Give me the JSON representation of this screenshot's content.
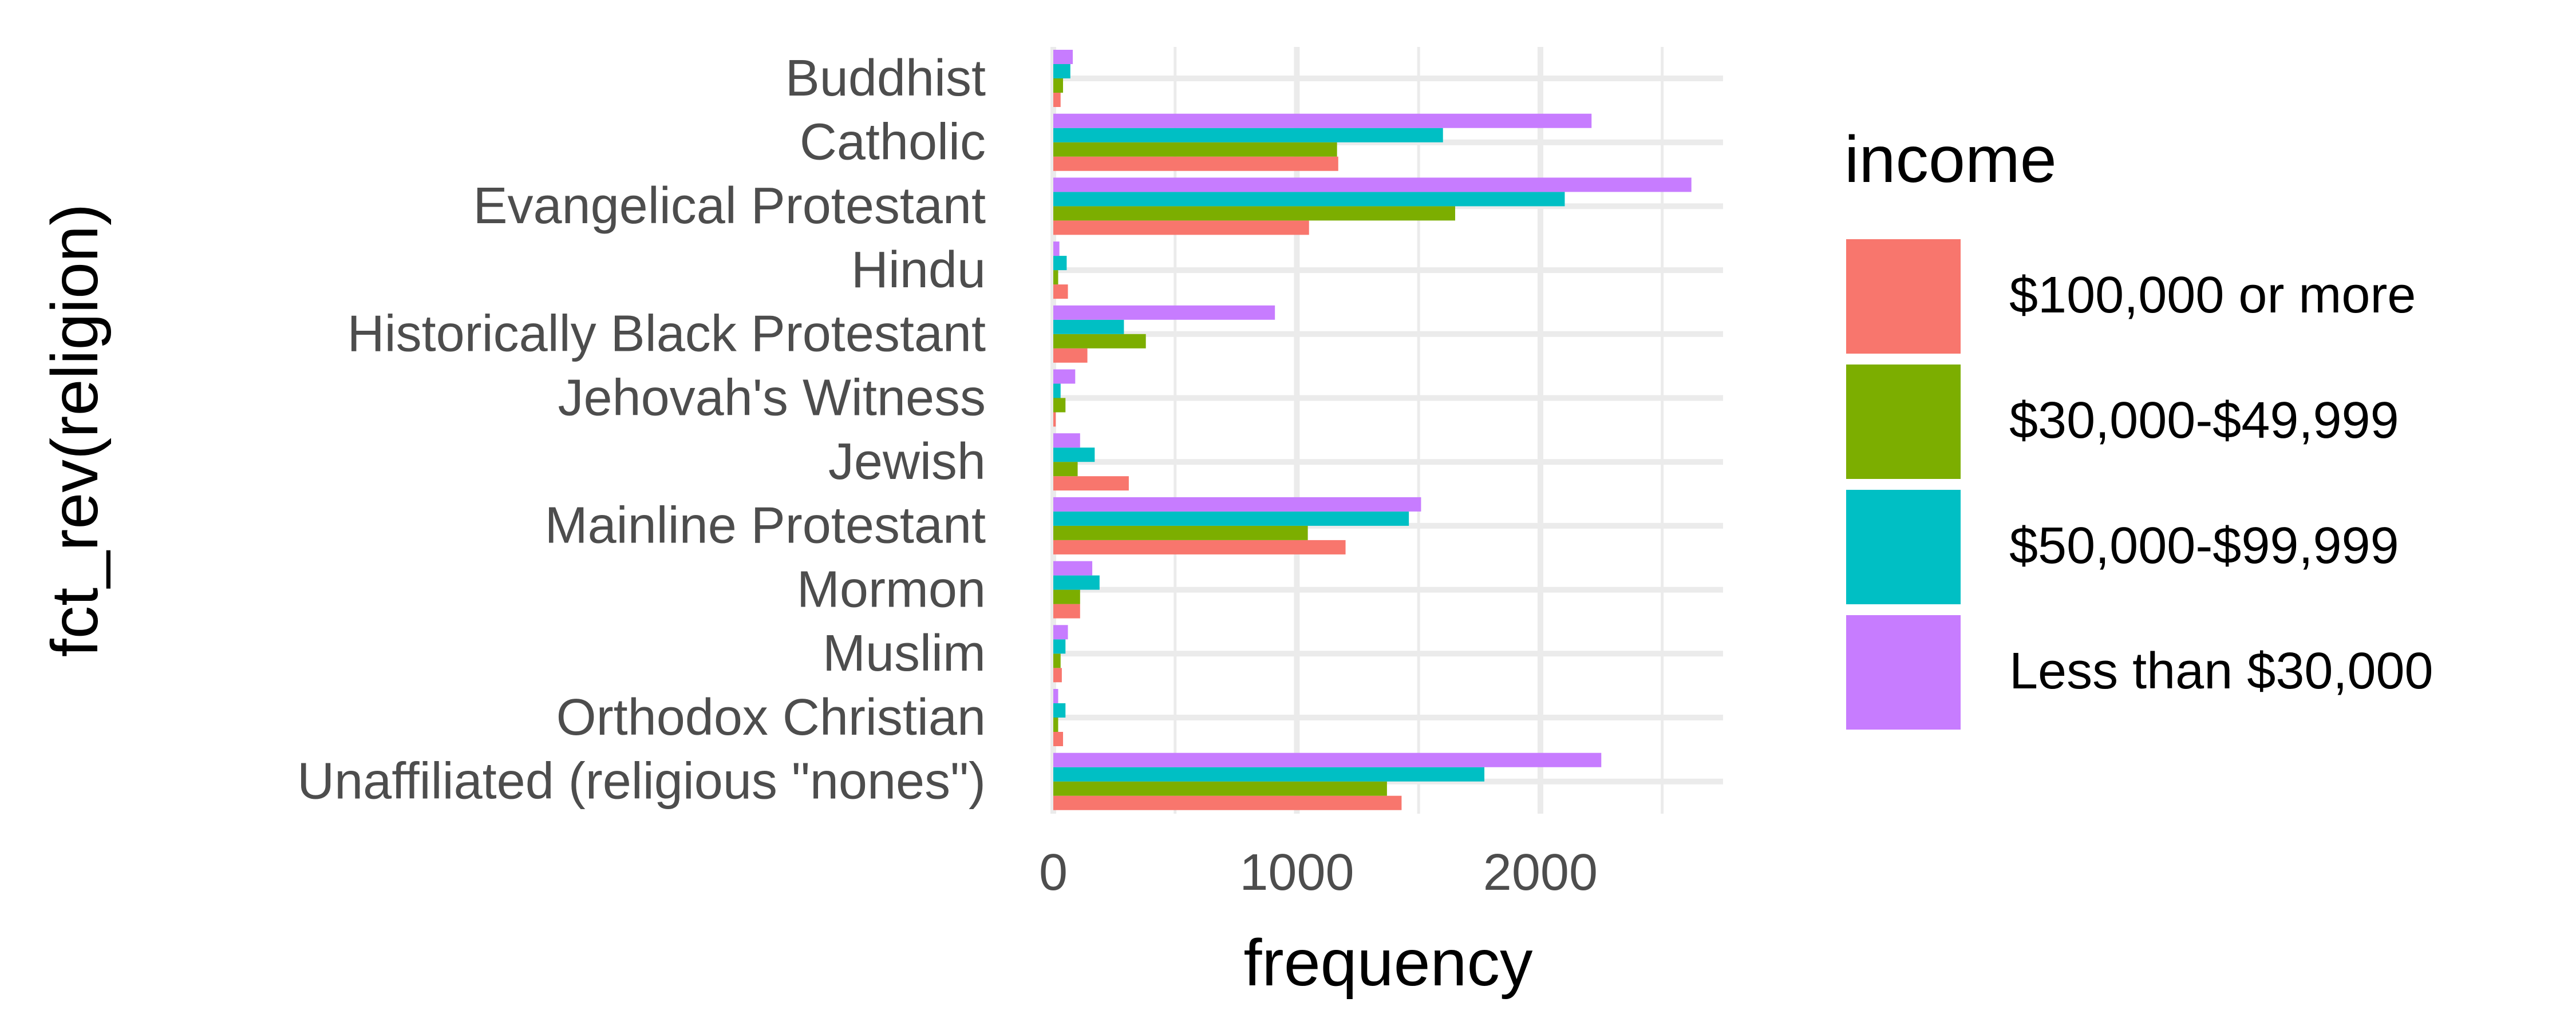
{
  "chart_data": {
    "type": "bar",
    "orientation": "horizontal",
    "xlabel": "frequency",
    "ylabel": "fct_rev(religion)",
    "xlim": [
      0,
      2750
    ],
    "x_ticks": [
      0,
      1000,
      2000
    ],
    "x_tick_labels": [
      "0",
      "1000",
      "2000"
    ],
    "grid": true,
    "legend": {
      "title": "income",
      "position": "right"
    },
    "categories": [
      "Buddhist",
      "Catholic",
      "Evangelical Protestant",
      "Hindu",
      "Historically Black Protestant",
      "Jehovah's Witness",
      "Jewish",
      "Mainline Protestant",
      "Mormon",
      "Muslim",
      "Orthodox Christian",
      "Unaffiliated (religious \"nones\")"
    ],
    "series": [
      {
        "name": "$100,000 or more",
        "color": "#F8766D",
        "values": [
          30,
          1170,
          1050,
          60,
          140,
          10,
          310,
          1200,
          110,
          35,
          40,
          1430
        ]
      },
      {
        "name": "$30,000-$49,999",
        "color": "#7CAE00",
        "values": [
          40,
          1165,
          1650,
          20,
          380,
          50,
          100,
          1045,
          110,
          30,
          20,
          1370
        ]
      },
      {
        "name": "$50,000-$99,999",
        "color": "#00BFC4",
        "values": [
          70,
          1600,
          2100,
          55,
          290,
          30,
          170,
          1460,
          190,
          50,
          50,
          1770
        ]
      },
      {
        "name": "Less than $30,000",
        "color": "#C77CFF",
        "values": [
          80,
          2210,
          2620,
          25,
          910,
          90,
          110,
          1510,
          160,
          60,
          20,
          2250
        ]
      }
    ]
  }
}
